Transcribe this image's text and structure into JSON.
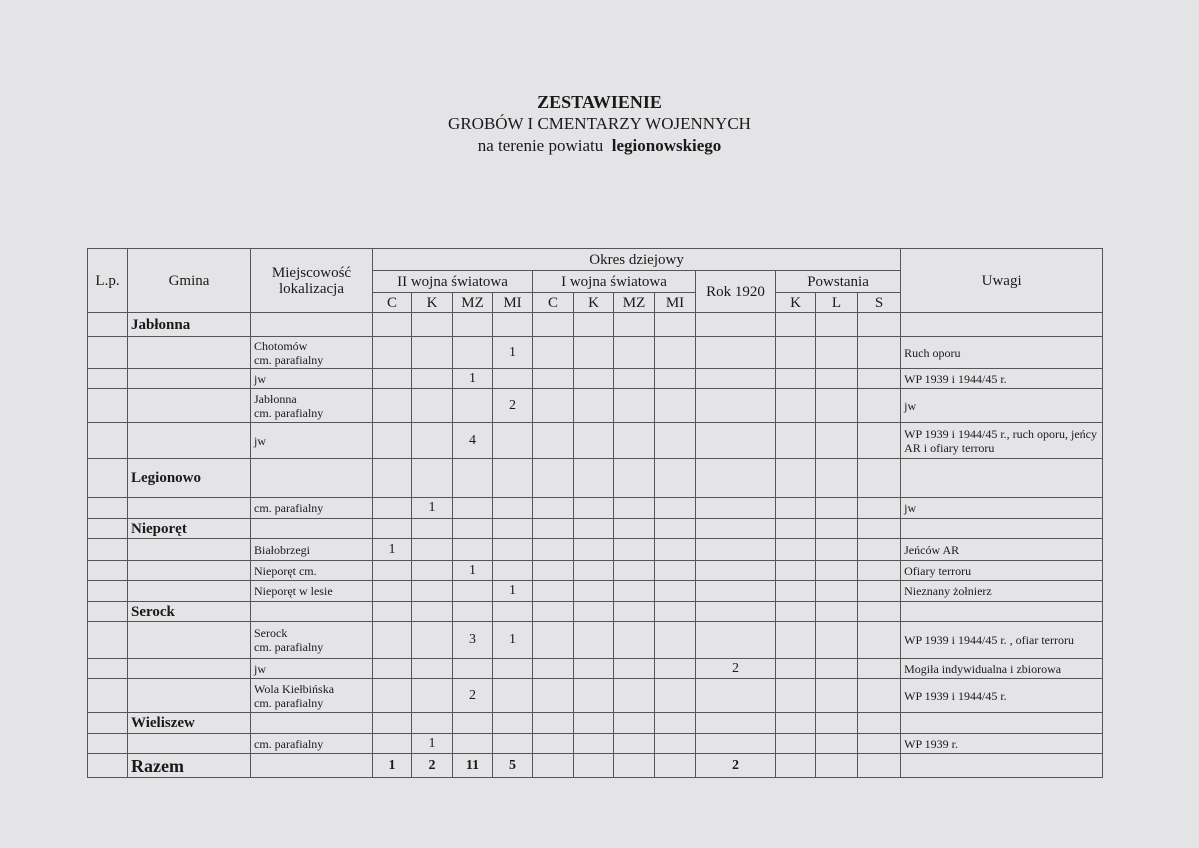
{
  "heading": {
    "line1": "ZESTAWIENIE",
    "line2": "GROBÓW I CMENTARZY WOJENNYCH",
    "line3_prefix": "na terenie powiatu",
    "line3_bold": "legionowskiego"
  },
  "table": {
    "headers": {
      "lp": "L.p.",
      "gmina": "Gmina",
      "miejscowosc": "Miejscowość lokalizacja",
      "okres": "Okres dziejowy",
      "ww2": "II wojna światowa",
      "ww1": "I wojna światowa",
      "rok1920": "Rok 1920",
      "powstania": "Powstania",
      "uwagi": "Uwagi",
      "ww2_sub": [
        "C",
        "K",
        "MZ",
        "MI"
      ],
      "ww1_sub": [
        "C",
        "K",
        "MZ",
        "MI"
      ],
      "powstania_sub": [
        "K",
        "L",
        "S"
      ]
    },
    "rows": [
      {
        "type": "gmina",
        "gmina": "Jabłonna",
        "h": 24
      },
      {
        "type": "data",
        "miejscowosc": "Chotomów\ncm. parafialny",
        "values": [
          "",
          "",
          "",
          "1",
          "",
          "",
          "",
          "",
          "",
          "",
          "",
          ""
        ],
        "uwagi": "Ruch oporu",
        "h": 32
      },
      {
        "type": "data",
        "miejscowosc": "jw",
        "values": [
          "",
          "",
          "1",
          "",
          "",
          "",
          "",
          "",
          "",
          "",
          "",
          ""
        ],
        "uwagi": "WP 1939 i 1944/45 r.",
        "h": 20
      },
      {
        "type": "data",
        "miejscowosc": "Jabłonna\ncm. parafialny",
        "values": [
          "",
          "",
          "",
          "2",
          "",
          "",
          "",
          "",
          "",
          "",
          "",
          ""
        ],
        "uwagi": "jw",
        "h": 34
      },
      {
        "type": "data",
        "miejscowosc": "jw",
        "values": [
          "",
          "",
          "4",
          "",
          "",
          "",
          "",
          "",
          "",
          "",
          "",
          ""
        ],
        "uwagi": "WP 1939 i 1944/45 r., ruch oporu, jeńcy AR i ofiary terroru",
        "h": 36
      },
      {
        "type": "gmina",
        "gmina": "Legionowo",
        "h": 39
      },
      {
        "type": "data",
        "miejscowosc": "cm. parafialny",
        "values": [
          "",
          "1",
          "",
          "",
          "",
          "",
          "",
          "",
          "",
          "",
          "",
          ""
        ],
        "uwagi": "jw",
        "h": 21
      },
      {
        "type": "gmina",
        "gmina": "Nieporęt",
        "h": 20
      },
      {
        "type": "data",
        "miejscowosc": "Białobrzegi",
        "values": [
          "1",
          "",
          "",
          "",
          "",
          "",
          "",
          "",
          "",
          "",
          "",
          ""
        ],
        "uwagi": "Jeńców AR",
        "h": 22
      },
      {
        "type": "data",
        "miejscowosc": "Nieporęt  cm.",
        "values": [
          "",
          "",
          "1",
          "",
          "",
          "",
          "",
          "",
          "",
          "",
          "",
          ""
        ],
        "uwagi": "Ofiary terroru",
        "h": 20
      },
      {
        "type": "data",
        "miejscowosc": "Nieporęt w lesie",
        "values": [
          "",
          "",
          "",
          "1",
          "",
          "",
          "",
          "",
          "",
          "",
          "",
          ""
        ],
        "uwagi": "Nieznany  żołnierz",
        "h": 21
      },
      {
        "type": "gmina",
        "gmina": "Serock",
        "h": 20
      },
      {
        "type": "data",
        "miejscowosc": "Serock\ncm. parafialny",
        "values": [
          "",
          "",
          "3",
          "1",
          "",
          "",
          "",
          "",
          "",
          "",
          "",
          ""
        ],
        "uwagi": "WP 1939 i 1944/45 r. , ofiar terroru",
        "h": 37
      },
      {
        "type": "data",
        "miejscowosc": "jw",
        "values": [
          "",
          "",
          "",
          "",
          "",
          "",
          "",
          "",
          "2",
          "",
          "",
          ""
        ],
        "uwagi": "Mogiła indywidualna i zbiorowa",
        "h": 20
      },
      {
        "type": "data",
        "miejscowosc": "Wola Kiełbińska\ncm. parafialny",
        "values": [
          "",
          "",
          "2",
          "",
          "",
          "",
          "",
          "",
          "",
          "",
          "",
          ""
        ],
        "uwagi": "WP 1939 i 1944/45 r.",
        "h": 34
      },
      {
        "type": "gmina",
        "gmina": "Wieliszew",
        "h": 21
      },
      {
        "type": "data",
        "miejscowosc": "cm. parafialny",
        "values": [
          "",
          "1",
          "",
          "",
          "",
          "",
          "",
          "",
          "",
          "",
          "",
          ""
        ],
        "uwagi": "WP 1939 r.",
        "h": 20
      },
      {
        "type": "razem",
        "gmina": "Razem",
        "values": [
          "1",
          "2",
          "11",
          "5",
          "",
          "",
          "",
          "",
          "2",
          "",
          "",
          ""
        ],
        "h": 24
      }
    ]
  },
  "colors": {
    "background": "#e4e4e7",
    "lines": "#555555",
    "text": "#1a1a1a"
  }
}
